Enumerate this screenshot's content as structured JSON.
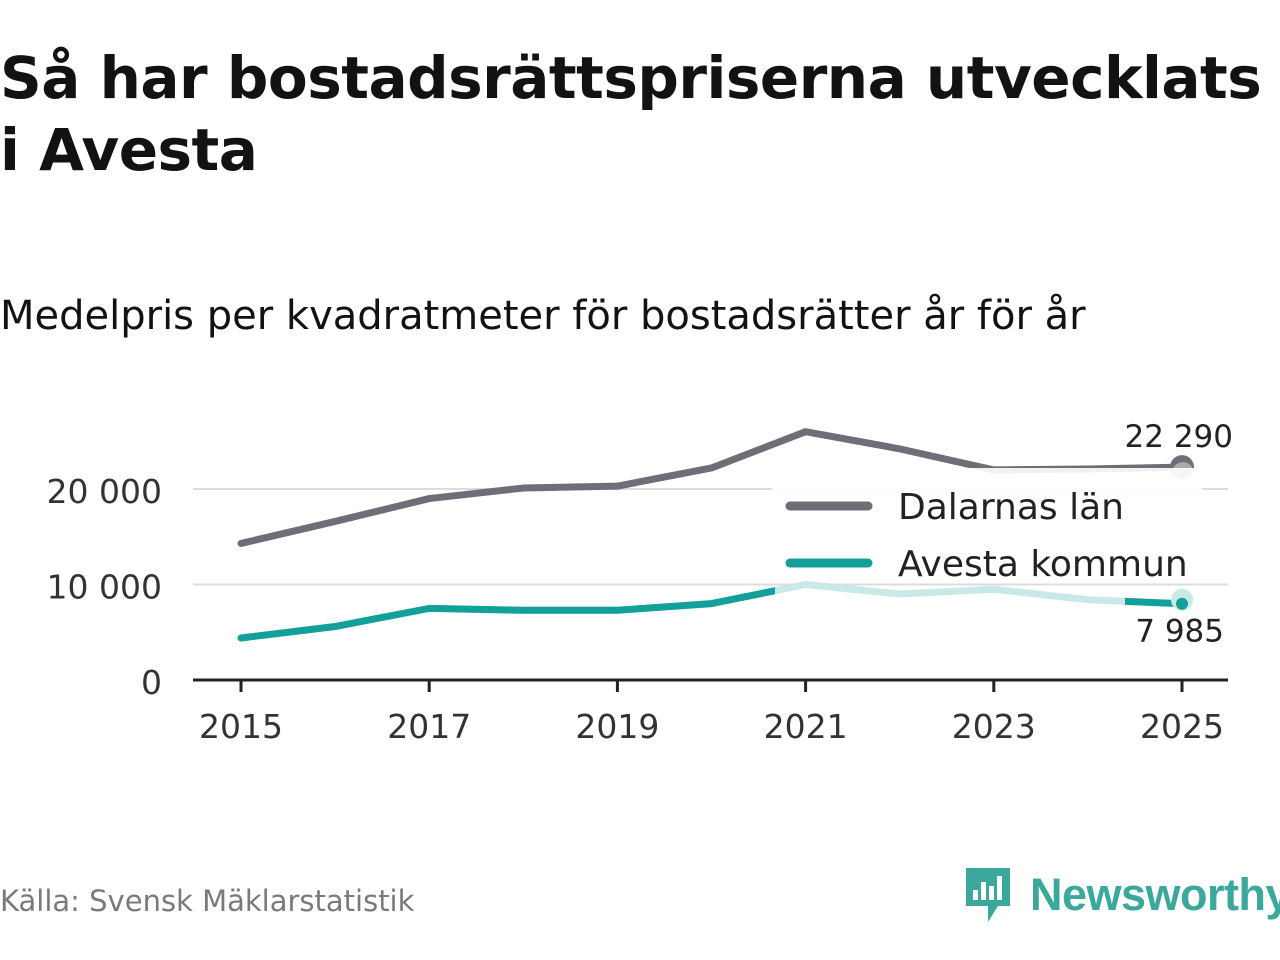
{
  "title": "Så har bostadsrättspriserna utvecklats i Avesta",
  "subtitle": "Medelpris per kvadratmeter för bostadsrätter år för år",
  "source": "Källa: Svensk Mäklarstatistik",
  "brand": {
    "name": "Newsworthy",
    "color": "#3aa89a"
  },
  "chart_data": {
    "type": "line",
    "x": [
      2015,
      2016,
      2017,
      2018,
      2019,
      2020,
      2021,
      2022,
      2023,
      2024,
      2025
    ],
    "xlim": [
      2015,
      2025
    ],
    "ylim": [
      0,
      20000
    ],
    "x_ticks": [
      "2015",
      "2017",
      "2019",
      "2021",
      "2023",
      "2025"
    ],
    "y_ticks": [
      "0",
      "10 000",
      "20 000"
    ],
    "series": [
      {
        "name": "Dalarnas län",
        "color": "#6e6e77",
        "values": [
          14300,
          16600,
          19000,
          20100,
          20300,
          22200,
          26000,
          24200,
          22000,
          22100,
          22290
        ],
        "end_label": "22 290"
      },
      {
        "name": "Avesta kommun",
        "color": "#14a09a",
        "faded_color": "#c8e9e6",
        "values": [
          4400,
          5600,
          7500,
          7300,
          7300,
          8000,
          10000,
          9000,
          9500,
          8400,
          7985
        ],
        "end_label": "7 985"
      }
    ],
    "legend_position": "right"
  }
}
